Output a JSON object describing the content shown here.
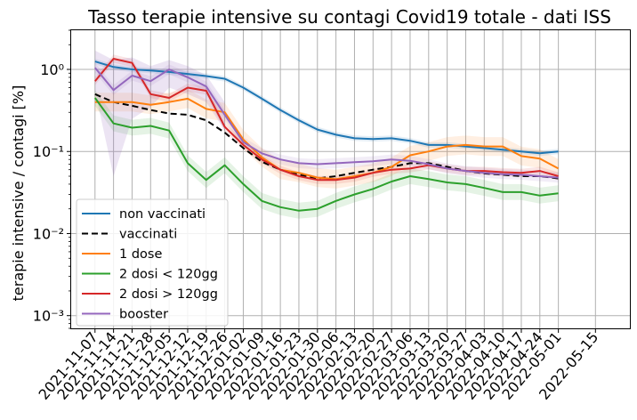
{
  "chart_data": {
    "type": "line",
    "title": "Tasso terapie intensive su contagi Covid19 totale - dati ISS",
    "xlabel": "",
    "ylabel": "terapie intensive / contagi [%]",
    "yscale": "log",
    "ylim": [
      0.0007,
      3.0
    ],
    "yticks": [
      {
        "value": 0.001,
        "label": "10⁻³"
      },
      {
        "value": 0.01,
        "label": "10⁻²"
      },
      {
        "value": 0.1,
        "label": "10⁻¹"
      },
      {
        "value": 1.0,
        "label": "10⁰"
      }
    ],
    "x_tick_labels": [
      "2021-11-07",
      "2021-11-14",
      "2021-11-21",
      "2021-11-28",
      "2021-12-05",
      "2021-12-12",
      "2021-12-19",
      "2021-12-26",
      "2022-01-02",
      "2022-01-09",
      "2022-01-16",
      "2022-01-23",
      "2022-01-30",
      "2022-02-06",
      "2022-02-13",
      "2022-02-20",
      "2022-02-27",
      "2022-03-06",
      "2022-03-13",
      "2022-03-20",
      "2022-03-27",
      "2022-04-03",
      "2022-04-10",
      "2022-04-17",
      "2022-04-24",
      "2022-05-01",
      "2022-05-15"
    ],
    "x": [
      "2021-11-07",
      "2021-11-14",
      "2021-11-21",
      "2021-11-28",
      "2021-12-05",
      "2021-12-12",
      "2021-12-19",
      "2021-12-26",
      "2022-01-02",
      "2022-01-09",
      "2022-01-16",
      "2022-01-23",
      "2022-01-30",
      "2022-02-06",
      "2022-02-13",
      "2022-02-20",
      "2022-02-27",
      "2022-03-06",
      "2022-03-13",
      "2022-03-20",
      "2022-03-27",
      "2022-04-03",
      "2022-04-10",
      "2022-04-17",
      "2022-04-24",
      "2022-05-01"
    ],
    "grid": true,
    "legend_position": "lower-left",
    "series": [
      {
        "name": "non vaccinati",
        "color": "#1f77b4",
        "dash": "solid",
        "band": 0.08,
        "values": [
          1.25,
          1.07,
          1.0,
          0.97,
          0.93,
          0.88,
          0.83,
          0.77,
          0.6,
          0.44,
          0.32,
          0.24,
          0.185,
          0.16,
          0.145,
          0.142,
          0.145,
          0.135,
          0.12,
          0.12,
          0.115,
          0.11,
          0.105,
          0.1,
          0.095,
          0.1
        ]
      },
      {
        "name": "vaccinati",
        "color": "#000000",
        "dash": "dashed",
        "band": 0,
        "values": [
          0.5,
          0.4,
          0.36,
          0.32,
          0.29,
          0.28,
          0.24,
          0.17,
          0.11,
          0.075,
          0.06,
          0.052,
          0.047,
          0.05,
          0.055,
          0.06,
          0.065,
          0.072,
          0.072,
          0.065,
          0.058,
          0.054,
          0.052,
          0.05,
          0.05,
          0.047
        ]
      },
      {
        "name": "1 dose",
        "color": "#ff7f0e",
        "dash": "solid",
        "band": 0.3,
        "values": [
          0.4,
          0.4,
          0.4,
          0.37,
          0.4,
          0.44,
          0.33,
          0.3,
          0.14,
          0.085,
          0.06,
          0.055,
          0.048,
          0.046,
          0.05,
          0.055,
          0.065,
          0.09,
          0.1,
          0.115,
          0.12,
          0.115,
          0.115,
          0.088,
          0.082,
          0.062
        ]
      },
      {
        "name": "2 dosi < 120gg",
        "color": "#2ca02c",
        "dash": "solid",
        "band": 0.25,
        "values": [
          0.45,
          0.22,
          0.195,
          0.205,
          0.18,
          0.072,
          0.045,
          0.068,
          0.04,
          0.025,
          0.021,
          0.019,
          0.02,
          0.025,
          0.03,
          0.035,
          0.043,
          0.05,
          0.046,
          0.042,
          0.04,
          0.036,
          0.032,
          0.032,
          0.029,
          0.031
        ]
      },
      {
        "name": "2 dosi > 120gg",
        "color": "#d62728",
        "dash": "solid",
        "band": 0.12,
        "values": [
          0.72,
          1.35,
          1.2,
          0.5,
          0.45,
          0.6,
          0.55,
          0.2,
          0.12,
          0.08,
          0.06,
          0.05,
          0.045,
          0.045,
          0.048,
          0.055,
          0.06,
          0.062,
          0.068,
          0.062,
          0.058,
          0.058,
          0.056,
          0.055,
          0.058,
          0.05
        ]
      },
      {
        "name": "booster",
        "color": "#9467bd",
        "dash": "solid",
        "band": 0.15,
        "values": [
          1.05,
          0.56,
          0.84,
          0.72,
          1.0,
          0.8,
          0.62,
          0.28,
          0.13,
          0.095,
          0.08,
          0.072,
          0.07,
          0.072,
          0.074,
          0.076,
          0.08,
          0.077,
          0.07,
          0.062,
          0.058,
          0.055,
          0.053,
          0.052,
          0.05,
          0.048
        ]
      }
    ],
    "confidence_bands": [
      {
        "series": "booster",
        "x_range": [
          "2021-11-07",
          "2021-12-26"
        ],
        "upper": [
          1.7,
          1.3,
          1.4,
          1.1,
          1.3,
          1.1,
          0.85,
          0.4
        ],
        "lower": [
          0.55,
          0.05,
          0.25,
          0.35,
          0.6,
          0.5,
          0.4,
          0.18
        ]
      }
    ]
  }
}
